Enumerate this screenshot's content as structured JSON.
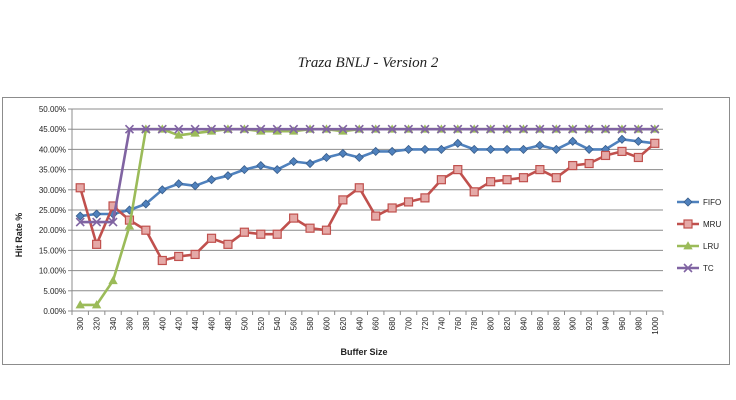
{
  "chart_data": {
    "type": "line",
    "title": "Traza BNLJ - Version 2",
    "xlabel": "Buffer Size",
    "ylabel": "Hit Rate %",
    "x": [
      300,
      320,
      340,
      360,
      380,
      400,
      420,
      440,
      460,
      480,
      500,
      520,
      540,
      560,
      580,
      600,
      620,
      640,
      660,
      680,
      700,
      720,
      740,
      760,
      780,
      800,
      820,
      840,
      860,
      880,
      900,
      920,
      940,
      960,
      980,
      1000
    ],
    "x_tick_labels": [
      "300",
      "320",
      "340",
      "360",
      "380",
      "400",
      "420",
      "440",
      "460",
      "480",
      "500",
      "520",
      "540",
      "560",
      "580",
      "600",
      "620",
      "640",
      "660",
      "680",
      "700",
      "720",
      "740",
      "760",
      "780",
      "800",
      "820",
      "840",
      "860",
      "880",
      "900",
      "920",
      "940",
      "960",
      "980",
      "1000"
    ],
    "ylim": [
      0,
      50
    ],
    "y_tick_labels": [
      "0.00%",
      "5.00%",
      "10.00%",
      "15.00%",
      "20.00%",
      "25.00%",
      "30.00%",
      "35.00%",
      "40.00%",
      "45.00%",
      "50.00%"
    ],
    "grid": true,
    "legend_position": "right",
    "series": [
      {
        "name": "FIFO",
        "color": "#4F81BD",
        "marker": "diamond",
        "values": [
          23.5,
          24,
          24,
          25,
          26.5,
          30,
          31.5,
          31,
          32.5,
          33.5,
          35,
          36,
          35,
          37,
          36.5,
          38,
          39,
          38,
          39.5,
          39.5,
          40,
          40,
          40,
          41.5,
          40,
          40,
          40,
          40,
          41,
          40,
          42,
          40,
          40,
          42.5,
          42,
          41.5
        ]
      },
      {
        "name": "MRU",
        "color": "#C0504D",
        "marker": "square",
        "values": [
          30.5,
          16.5,
          26,
          22.5,
          20,
          12.5,
          13.5,
          14,
          18,
          16.5,
          19.5,
          19,
          19,
          23,
          20.5,
          20,
          27.5,
          30.5,
          23.5,
          25.5,
          27,
          28,
          32.5,
          35,
          29.5,
          32,
          32.5,
          33,
          35,
          33,
          36,
          36.5,
          38.5,
          39.5,
          38,
          41.5
        ]
      },
      {
        "name": "LRU",
        "color": "#9BBB59",
        "marker": "triangle",
        "values": [
          1.5,
          1.5,
          7.5,
          21,
          45,
          45,
          43.5,
          44,
          44.5,
          45,
          45,
          44.5,
          44.5,
          44.5,
          45,
          45,
          44.5,
          45,
          45,
          45,
          45,
          45,
          45,
          45,
          45,
          45,
          45,
          45,
          45,
          45,
          45,
          45,
          45,
          45,
          45,
          45
        ]
      },
      {
        "name": "TC",
        "color": "#8064A2",
        "marker": "x",
        "values": [
          22,
          22,
          22,
          45,
          45,
          45,
          45,
          45,
          45,
          45,
          45,
          45,
          45,
          45,
          45,
          45,
          45,
          45,
          45,
          45,
          45,
          45,
          45,
          45,
          45,
          45,
          45,
          45,
          45,
          45,
          45,
          45,
          45,
          45,
          45,
          45
        ]
      }
    ]
  }
}
